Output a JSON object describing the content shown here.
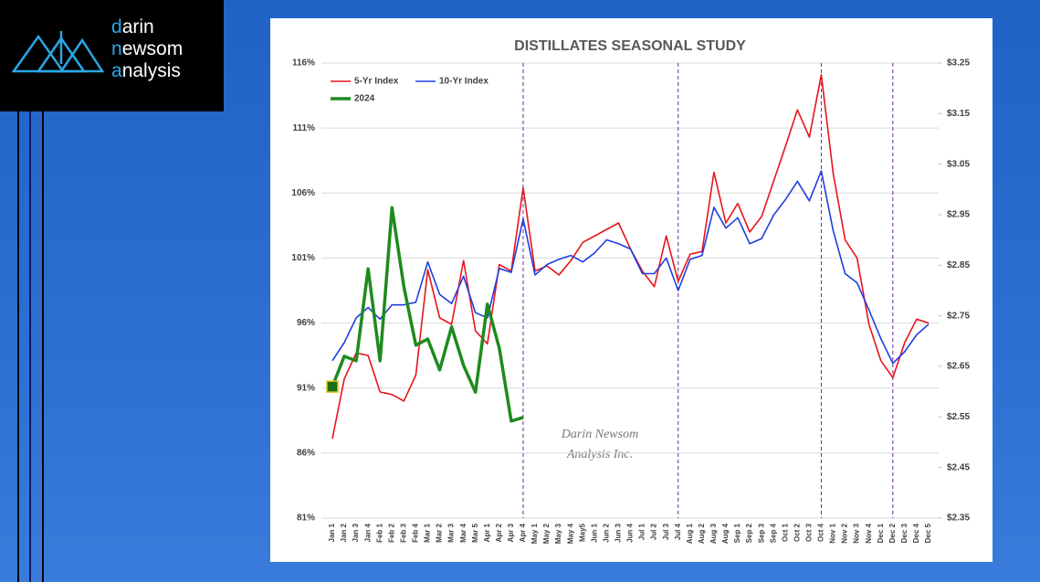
{
  "logo": {
    "lines": [
      "darin",
      "newsom",
      "analysis"
    ]
  },
  "chart_data": {
    "type": "line",
    "title": "DISTILLATES SEASONAL STUDY",
    "watermark": [
      "Darin Newsom",
      "Analysis Inc."
    ],
    "categories": [
      "Jan 1",
      "Jan 2",
      "Jan 3",
      "Jan 4",
      "Feb 1",
      "Feb 2",
      "Feb 3",
      "Feb 4",
      "Mar 1",
      "Mar 2",
      "Mar 3",
      "Mar 4",
      "Mar 5",
      "Apr 1",
      "Apr 2",
      "Apr 3",
      "Apr 4",
      "May 1",
      "May 2",
      "May 3",
      "May 4",
      "May5",
      "Jun 1",
      "Jun 2",
      "Jun 3",
      "Jun 4",
      "Jul 1",
      "Jul 2",
      "Jul 3",
      "Jul 4",
      "Aug 1",
      "Aug 2",
      "Aug 3",
      "Aug 4",
      "Sep 1",
      "Sep 2",
      "Sep 3",
      "Sep 4",
      "Oct 1",
      "Oct 2",
      "Oct 3",
      "Oct 4",
      "Nov 1",
      "Nov 2",
      "Nov 3",
      "Nov 4",
      "Dec 1",
      "Dec 2",
      "Dec 3",
      "Dec 4",
      "Dec 5"
    ],
    "series": [
      {
        "name": "5-Yr Index",
        "color": "#e8141b",
        "width": 1.6,
        "values": [
          87.1,
          91.7,
          93.7,
          93.5,
          90.7,
          90.5,
          90.0,
          92.0,
          100.1,
          96.4,
          95.9,
          100.8,
          95.4,
          94.4,
          100.5,
          100.0,
          106.4,
          100.0,
          100.4,
          99.7,
          100.8,
          102.2,
          102.7,
          103.2,
          103.7,
          101.7,
          100.0,
          98.8,
          102.7,
          99.2,
          101.3,
          101.5,
          107.6,
          103.7,
          105.2,
          103.0,
          104.2,
          106.9,
          109.6,
          112.4,
          110.3,
          115.1,
          107.5,
          102.4,
          101.0,
          95.9,
          93.1,
          91.8,
          94.5,
          96.3,
          96.0
        ]
      },
      {
        "name": "10-Yr Index",
        "color": "#1f3fe0",
        "width": 1.6,
        "values": [
          93.1,
          94.5,
          96.4,
          97.2,
          96.3,
          97.4,
          97.4,
          97.6,
          100.7,
          98.2,
          97.5,
          99.6,
          96.8,
          96.4,
          100.2,
          99.9,
          104.0,
          99.7,
          100.5,
          100.9,
          101.2,
          100.7,
          101.4,
          102.4,
          102.1,
          101.7,
          99.8,
          99.8,
          101.0,
          98.5,
          100.9,
          101.2,
          104.9,
          103.3,
          104.1,
          102.1,
          102.5,
          104.3,
          105.5,
          106.9,
          105.4,
          107.7,
          103.1,
          99.8,
          99.1,
          97.0,
          94.8,
          92.9,
          93.8,
          95.1,
          95.9
        ]
      },
      {
        "name": "2024",
        "color": "#1e8a1e",
        "width": 3.5,
        "axis": "y2",
        "marker_first": true,
        "values": [
          2.61,
          2.67,
          2.661,
          2.843,
          2.661,
          2.964,
          2.807,
          2.692,
          2.704,
          2.643,
          2.728,
          2.652,
          2.599,
          2.773,
          2.686,
          2.542,
          2.549,
          null,
          null,
          null,
          null,
          null,
          null,
          null,
          null,
          null,
          null,
          null,
          null,
          null,
          null,
          null,
          null,
          null,
          null,
          null,
          null,
          null,
          null,
          null,
          null,
          null,
          null,
          null,
          null,
          null,
          null,
          null,
          null,
          null,
          null
        ]
      }
    ],
    "ylim": [
      81,
      116
    ],
    "yticks": [
      {
        "value": 81,
        "label": "81%"
      },
      {
        "value": 86,
        "label": "86%"
      },
      {
        "value": 91,
        "label": "91%"
      },
      {
        "value": 96,
        "label": "96%"
      },
      {
        "value": 101,
        "label": "101%"
      },
      {
        "value": 106,
        "label": "106%"
      },
      {
        "value": 111,
        "label": "111%"
      },
      {
        "value": 116,
        "label": "116%"
      }
    ],
    "y2lim": [
      2.35,
      3.25
    ],
    "y2ticks": [
      {
        "value": 2.35,
        "label": "$2.35"
      },
      {
        "value": 2.45,
        "label": "$2.45"
      },
      {
        "value": 2.55,
        "label": "$2.55"
      },
      {
        "value": 2.65,
        "label": "$2.65"
      },
      {
        "value": 2.75,
        "label": "$2.75"
      },
      {
        "value": 2.85,
        "label": "$2.85"
      },
      {
        "value": 2.95,
        "label": "$2.95"
      },
      {
        "value": 3.05,
        "label": "$3.05"
      },
      {
        "value": 3.15,
        "label": "$3.15"
      },
      {
        "value": 3.25,
        "label": "$3.25"
      }
    ],
    "vlines": [
      "Apr 4",
      "Jul 4",
      "Oct 4",
      "Dec 2"
    ],
    "vline_color": "#6a2a9a",
    "grid": true,
    "legend": "upper left"
  }
}
